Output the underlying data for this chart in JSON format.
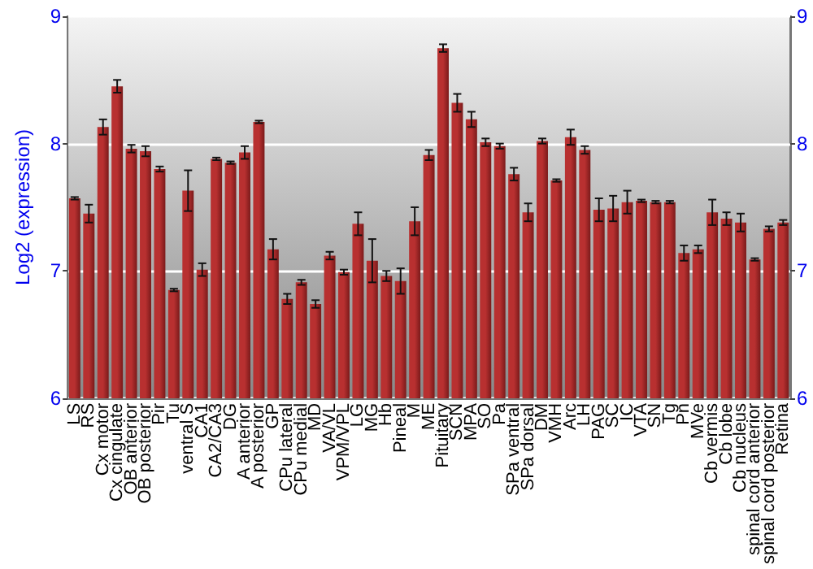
{
  "chart_data": {
    "type": "bar",
    "ylabel": "Log2 (expression)",
    "categories": [
      "LS",
      "RS",
      "Cx motor",
      "Cx cingulate",
      "OB anterior",
      "OB posterior",
      "Pir",
      "Tu",
      "ventral S",
      "CA1",
      "CA2/CA3",
      "DG",
      "A anterior",
      "A posterior",
      "GP",
      "CPu lateral",
      "CPu medial",
      "MD",
      "VA/VL",
      "VPM/VPL",
      "LG",
      "MG",
      "Hb",
      "Pineal",
      "M",
      "ME",
      "Pituitary",
      "SCN",
      "MPA",
      "SO",
      "Pa",
      "SPa ventral",
      "SPa dorsal",
      "DM",
      "VMH",
      "Arc",
      "LH",
      "PAG",
      "SC",
      "IC",
      "VTA",
      "SN",
      "Tg",
      "Pn",
      "MVe",
      "Cb vermis",
      "Cb lobe",
      "Cb nucleus",
      "spinal cord anterior",
      "spinal cord posterior",
      "Retina"
    ],
    "values": [
      7.57,
      7.45,
      8.13,
      8.45,
      7.96,
      7.94,
      7.8,
      6.85,
      7.63,
      7.01,
      7.88,
      7.85,
      7.93,
      8.17,
      7.17,
      6.78,
      6.91,
      6.74,
      7.12,
      6.99,
      7.37,
      7.08,
      6.96,
      6.92,
      7.39,
      7.91,
      8.75,
      8.32,
      8.19,
      8.01,
      7.98,
      7.76,
      7.46,
      8.02,
      7.71,
      8.05,
      7.95,
      7.48,
      7.49,
      7.54,
      7.55,
      7.54,
      7.54,
      7.14,
      7.17,
      7.46,
      7.41,
      7.38,
      7.09,
      7.33,
      7.38
    ],
    "errors": [
      0.01,
      0.07,
      0.06,
      0.05,
      0.03,
      0.04,
      0.02,
      0.01,
      0.16,
      0.05,
      0.01,
      0.01,
      0.05,
      0.01,
      0.08,
      0.04,
      0.02,
      0.03,
      0.03,
      0.02,
      0.09,
      0.17,
      0.04,
      0.1,
      0.11,
      0.04,
      0.03,
      0.07,
      0.06,
      0.03,
      0.02,
      0.05,
      0.07,
      0.02,
      0.01,
      0.06,
      0.03,
      0.09,
      0.1,
      0.09,
      0.01,
      0.01,
      0.01,
      0.06,
      0.03,
      0.1,
      0.05,
      0.07,
      0.01,
      0.02,
      0.02
    ],
    "color": "#b83030",
    "ylim": [
      6,
      9
    ],
    "yticks": [
      6,
      7,
      8,
      9
    ],
    "y2lim": [
      6,
      9
    ],
    "y2ticks": [
      6,
      7,
      8,
      9
    ],
    "grid": "y"
  }
}
